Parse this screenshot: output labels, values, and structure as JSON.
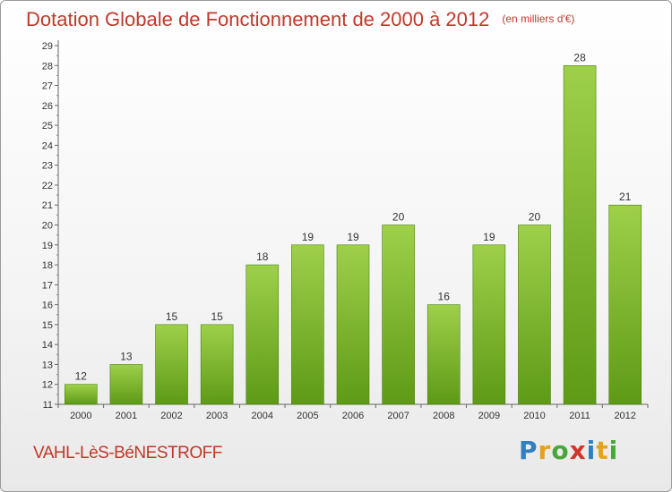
{
  "chart_data": {
    "type": "bar",
    "title": "Dotation Globale de Fonctionnement de 2000 à 2012",
    "subtitle": "(en milliers d'€)",
    "categories": [
      "2000",
      "2001",
      "2002",
      "2003",
      "2004",
      "2005",
      "2006",
      "2007",
      "2008",
      "2009",
      "2010",
      "2011",
      "2012"
    ],
    "values": [
      12,
      13,
      15,
      15,
      18,
      19,
      19,
      20,
      16,
      19,
      20,
      28,
      21
    ],
    "ylim": [
      11,
      29
    ],
    "yticks": [
      11,
      12,
      13,
      14,
      15,
      16,
      17,
      18,
      19,
      20,
      21,
      22,
      23,
      24,
      25,
      26,
      27,
      28,
      29
    ],
    "grid": false,
    "bar_color_top": "#9ed04a",
    "bar_color_bottom": "#5e9a16"
  },
  "footer": {
    "commune": "VAHL-LèS-BéNESTROFF",
    "brand_letters": [
      {
        "char": "P",
        "color": "#2f7fc1"
      },
      {
        "char": "r",
        "color": "#e8a21a"
      },
      {
        "char": "o",
        "color": "#4aa63a"
      },
      {
        "char": "x",
        "color": "#d2342a"
      },
      {
        "char": "i",
        "color": "#2f7fc1"
      },
      {
        "char": "t",
        "color": "#e8a21a"
      },
      {
        "char": "i",
        "color": "#4aa63a"
      }
    ]
  }
}
